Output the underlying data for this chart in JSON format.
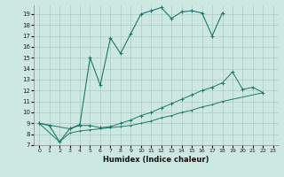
{
  "title": "",
  "xlabel": "Humidex (Indice chaleur)",
  "bg_color": "#cce8e0",
  "grid_color": "#aaccc4",
  "line_color": "#1a7a6a",
  "xlim": [
    -0.5,
    23.5
  ],
  "ylim": [
    7,
    19.8
  ],
  "xticks": [
    0,
    1,
    2,
    3,
    4,
    5,
    6,
    7,
    8,
    9,
    10,
    11,
    12,
    13,
    14,
    15,
    16,
    17,
    18,
    19,
    20,
    21,
    22,
    23
  ],
  "yticks": [
    7,
    8,
    9,
    10,
    11,
    12,
    13,
    14,
    15,
    16,
    17,
    18,
    19
  ],
  "line1_x": [
    0,
    1,
    2,
    3,
    4,
    5,
    6,
    7,
    8,
    9,
    10,
    11,
    12,
    13,
    14,
    15,
    16,
    17,
    18
  ],
  "line1_y": [
    9.0,
    8.8,
    7.3,
    8.5,
    8.9,
    15.0,
    12.5,
    16.8,
    15.4,
    17.2,
    19.0,
    19.3,
    19.6,
    18.6,
    19.2,
    19.3,
    19.1,
    17.0,
    19.1
  ],
  "line2_x": [
    0,
    3,
    4,
    5,
    6,
    7,
    8,
    9,
    10,
    11,
    12,
    13,
    14,
    15,
    16,
    17,
    18,
    19,
    20,
    21,
    22
  ],
  "line2_y": [
    9.0,
    8.5,
    8.8,
    8.8,
    8.6,
    8.7,
    9.0,
    9.3,
    9.7,
    10.0,
    10.4,
    10.8,
    11.2,
    11.6,
    12.0,
    12.3,
    12.7,
    13.7,
    12.1,
    12.3,
    11.8
  ],
  "line3_x": [
    0,
    2,
    3,
    4,
    5,
    6,
    7,
    8,
    9,
    10,
    11,
    12,
    13,
    14,
    15,
    16,
    17,
    18,
    22
  ],
  "line3_y": [
    9.0,
    7.3,
    8.1,
    8.3,
    8.4,
    8.5,
    8.6,
    8.7,
    8.8,
    9.0,
    9.2,
    9.5,
    9.7,
    10.0,
    10.2,
    10.5,
    10.7,
    11.0,
    11.8
  ]
}
